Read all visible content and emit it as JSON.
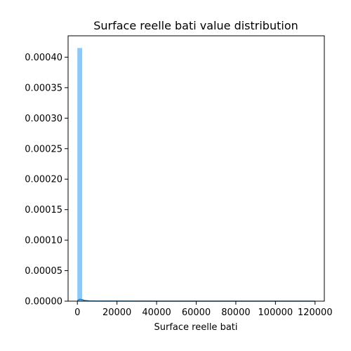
{
  "chart_data": {
    "type": "bar",
    "title": "Surface reelle bati value distribution",
    "xlabel": "Surface reelle bati",
    "ylabel": "",
    "xlim": [
      -4680,
      124680
    ],
    "ylim": [
      0,
      0.000435
    ],
    "x_ticks": [
      0,
      20000,
      40000,
      60000,
      80000,
      100000,
      120000
    ],
    "x_tick_labels": [
      "0",
      "20000",
      "40000",
      "60000",
      "80000",
      "100000",
      "120000"
    ],
    "y_ticks": [
      0,
      5e-05,
      0.0001,
      0.00015,
      0.0002,
      0.00025,
      0.0003,
      0.00035,
      0.0004
    ],
    "y_tick_labels": [
      "0.00000",
      "0.00005",
      "0.00010",
      "0.00015",
      "0.00020",
      "0.00025",
      "0.00030",
      "0.00035",
      "0.00040"
    ],
    "bin_edges": [
      0,
      2400,
      4800,
      7200,
      9600,
      12000,
      14400,
      16800,
      19200,
      21600,
      24000,
      26400,
      28800,
      31200,
      33600,
      36000,
      38400,
      40800,
      43200,
      45600,
      48000,
      50400,
      52800,
      55200,
      57600,
      60000,
      62400,
      64800,
      67200,
      69600,
      72000,
      74400,
      76800,
      79200,
      81600,
      84000,
      86400,
      88800,
      91200,
      93600,
      96000,
      98400,
      100800,
      103200,
      105600,
      108000,
      110400,
      112800,
      115200,
      117600,
      120000
    ],
    "densities": [
      0.000415,
      1.5e-06,
      5e-07,
      3e-07,
      2e-07,
      1e-07,
      1e-07,
      1e-07,
      0,
      0,
      0,
      0,
      0,
      0,
      0,
      0,
      0,
      0,
      0,
      0,
      0,
      0,
      0,
      0,
      0,
      0,
      0,
      0,
      0,
      0,
      0,
      0,
      0,
      0,
      0,
      0,
      0,
      0,
      0,
      0,
      0,
      0,
      0,
      0,
      0,
      0,
      0,
      0,
      0,
      1e-07
    ],
    "kde": {
      "x": [
        0,
        1200,
        2400,
        3600,
        6000,
        10000,
        20000,
        40000,
        60000,
        80000,
        100000,
        120000
      ],
      "y": [
        1e-06,
        3e-06,
        2.4e-06,
        1.2e-06,
        5e-07,
        2e-07,
        1e-07,
        5e-08,
        2e-08,
        2e-08,
        2e-08,
        3e-08
      ]
    },
    "bar_color": "#8ec8f6",
    "line_color": "#1f77b4",
    "grid": false
  }
}
